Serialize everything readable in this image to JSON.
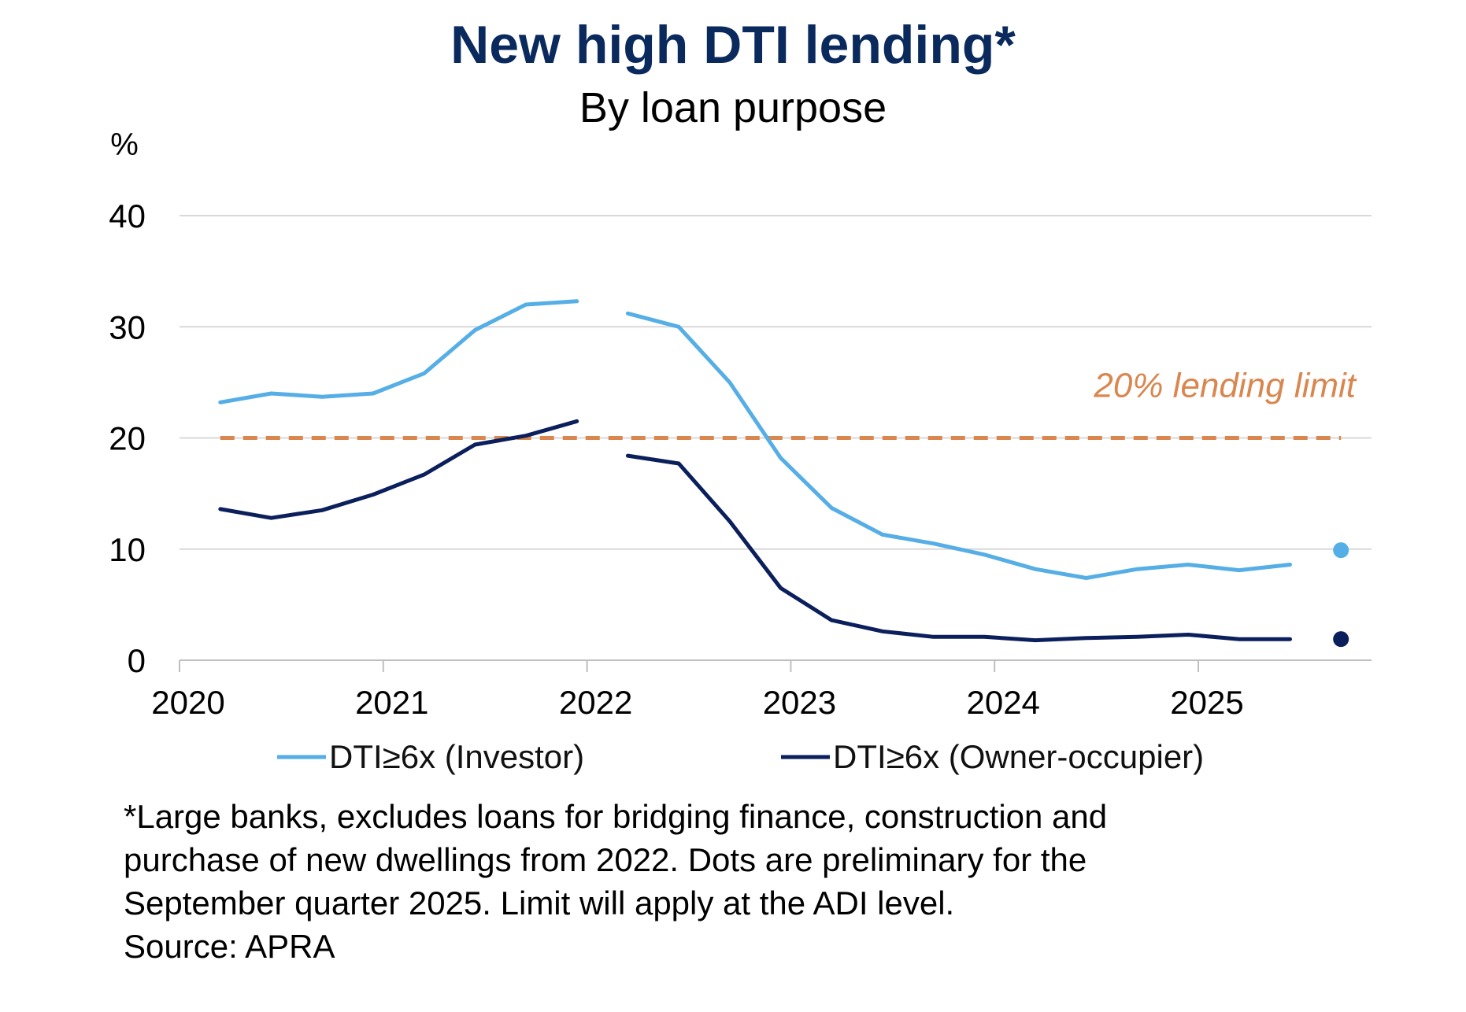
{
  "chart_data": {
    "type": "line",
    "title": "New high DTI lending*",
    "subtitle": "By loan purpose",
    "y_unit_label": "%",
    "ylim": [
      0,
      40
    ],
    "y_ticks": [
      "0",
      "10",
      "20",
      "30",
      "40"
    ],
    "x_ticks": [
      "2020",
      "2021",
      "2022",
      "2023",
      "2024",
      "2025"
    ],
    "xlim": [
      2020,
      2025.85
    ],
    "grid": true,
    "legend_position": "bottom",
    "series": [
      {
        "name": "DTI≥6x (Investor)",
        "color": "#55aee6",
        "segments": [
          [
            [
              2020.2,
              23.2
            ],
            [
              2020.45,
              24.0
            ],
            [
              2020.7,
              23.7
            ],
            [
              2020.95,
              24.0
            ],
            [
              2021.2,
              25.8
            ],
            [
              2021.45,
              29.7
            ],
            [
              2021.7,
              32.0
            ],
            [
              2021.95,
              32.3
            ]
          ],
          [
            [
              2022.2,
              31.2
            ],
            [
              2022.45,
              30.0
            ],
            [
              2022.7,
              25.0
            ],
            [
              2022.95,
              18.2
            ],
            [
              2023.2,
              13.7
            ],
            [
              2023.45,
              11.3
            ],
            [
              2023.7,
              10.5
            ],
            [
              2023.95,
              9.5
            ],
            [
              2024.2,
              8.2
            ],
            [
              2024.45,
              7.4
            ],
            [
              2024.7,
              8.2
            ],
            [
              2024.95,
              8.6
            ],
            [
              2025.2,
              8.1
            ],
            [
              2025.45,
              8.6
            ]
          ]
        ],
        "preliminary": [
          2025.7,
          9.9
        ]
      },
      {
        "name": "DTI≥6x (Owner-occupier)",
        "color": "#0a1f5c",
        "segments": [
          [
            [
              2020.2,
              13.6
            ],
            [
              2020.45,
              12.8
            ],
            [
              2020.7,
              13.5
            ],
            [
              2020.95,
              14.9
            ],
            [
              2021.2,
              16.7
            ],
            [
              2021.45,
              19.4
            ],
            [
              2021.7,
              20.2
            ],
            [
              2021.95,
              21.5
            ]
          ],
          [
            [
              2022.2,
              18.4
            ],
            [
              2022.45,
              17.7
            ],
            [
              2022.7,
              12.5
            ],
            [
              2022.95,
              6.5
            ],
            [
              2023.2,
              3.6
            ],
            [
              2023.45,
              2.6
            ],
            [
              2023.7,
              2.1
            ],
            [
              2023.95,
              2.1
            ],
            [
              2024.2,
              1.8
            ],
            [
              2024.45,
              2.0
            ],
            [
              2024.7,
              2.1
            ],
            [
              2024.95,
              2.3
            ],
            [
              2025.2,
              1.9
            ],
            [
              2025.45,
              1.9
            ]
          ]
        ],
        "preliminary": [
          2025.7,
          1.9
        ]
      }
    ],
    "reference_line": {
      "value": 20,
      "x_range": [
        2020.2,
        2025.7
      ],
      "label": "20% lending limit",
      "color": "#d9864f",
      "style": "dashed"
    }
  },
  "footnote": {
    "lines": [
      "*Large banks, excludes loans for bridging finance, construction and",
      "purchase of new dwellings from 2022. Dots are preliminary for the",
      "September quarter 2025. Limit will apply at the ADI level.",
      "Source: APRA"
    ]
  }
}
